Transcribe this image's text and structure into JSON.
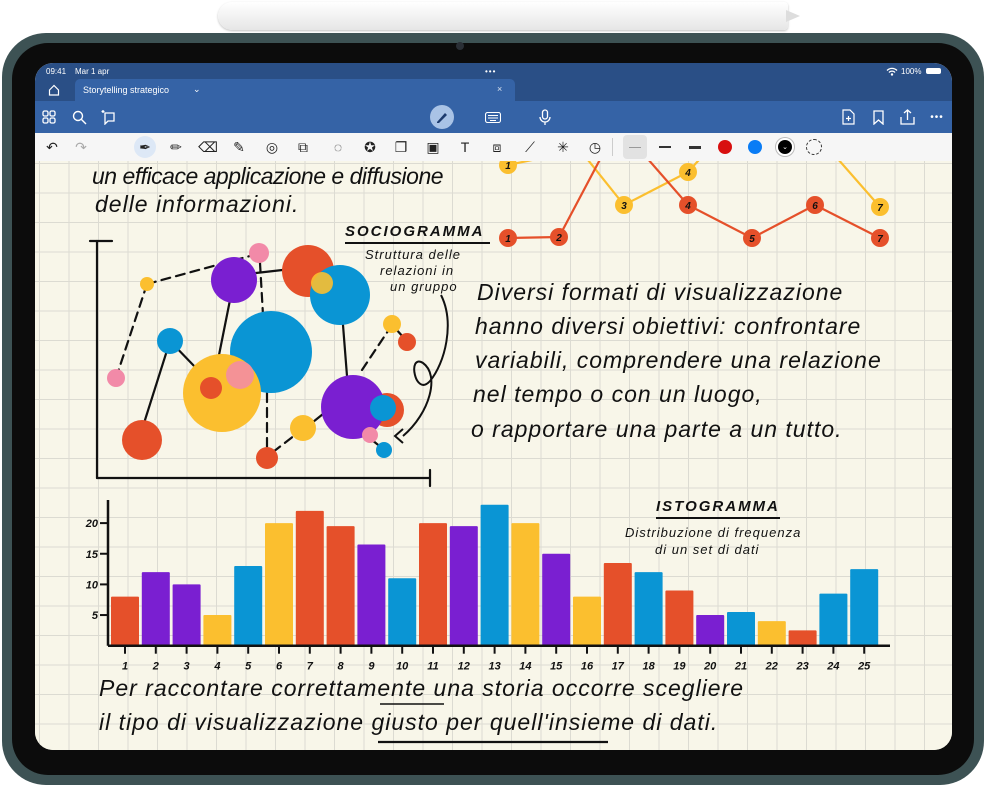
{
  "status_bar": {
    "time": "09:41",
    "date": "Mar 1 apr",
    "battery": "100%"
  },
  "tab": {
    "title": "Storytelling strategico",
    "close": "×"
  },
  "toolbar": {
    "left_icons": [
      "grid-icon",
      "search-icon",
      "ai-sparkle-icon"
    ],
    "center_icons": [
      "pen-mode-icon",
      "keyboard-icon",
      "microphone-icon"
    ],
    "right_icons": [
      "add-page-icon",
      "bookmark-icon",
      "share-icon",
      "more-icon"
    ]
  },
  "tools": {
    "items": [
      "undo-icon",
      "redo-icon",
      "pen-icon",
      "pencil-icon",
      "eraser-icon",
      "highlighter-icon",
      "shapes-icon",
      "elements-icon",
      "lasso-icon",
      "sticker-icon",
      "sticky-note-icon",
      "image-icon",
      "text-box-icon",
      "scan-icon",
      "ruler-icon",
      "laser-pointer-icon",
      "clock-icon"
    ],
    "stroke_widths": [
      "thin",
      "medium",
      "thick"
    ],
    "colors": [
      "#d80f0f",
      "#0a7cf5",
      "#000000"
    ],
    "selected_color": "#000000"
  },
  "notes": {
    "intro_line1": "un efficace applicazione e diffusione",
    "intro_line2": "delle informazioni.",
    "paragraph": [
      "Diversi formati di visualizzazione",
      "hanno diversi obiettivi: confrontare",
      "variabili, comprendere una relazione",
      "nel tempo o con un luogo,",
      "o rapportare una parte a un tutto."
    ],
    "conclusion_line1": "Per raccontare correttamente una storia occorre scegliere",
    "conclusion_line2": "il tipo di visualizzazione giusto per quell'insieme di dati."
  },
  "sociogram": {
    "title": "SOCIOGRAMMA",
    "caption": [
      "Struttura delle",
      "relazioni in",
      "un gruppo"
    ]
  },
  "colors": {
    "orange": "#e5502a",
    "purple": "#7a1fd1",
    "yellow": "#fbbf2f",
    "blue": "#0a95d4",
    "pink": "#f28aa8"
  },
  "chart_data": [
    {
      "type": "bar",
      "title": "ISTOGRAMMA",
      "subtitle": "Distribuzione di frequenza di un set di dati",
      "subtitle_lines": [
        "Distribuzione di frequenza",
        "di un set di dati"
      ],
      "categories": [
        "1",
        "2",
        "3",
        "4",
        "5",
        "6",
        "7",
        "8",
        "9",
        "10",
        "11",
        "12",
        "13",
        "14",
        "15",
        "16",
        "17",
        "18",
        "19",
        "20",
        "21",
        "22",
        "23",
        "24",
        "25"
      ],
      "values": [
        8,
        12,
        10,
        5,
        13,
        20,
        22,
        19.5,
        16.5,
        11,
        20,
        19.5,
        23,
        20,
        15,
        8,
        13.5,
        12,
        9,
        5,
        5.5,
        4,
        2.5,
        8.5,
        12.5
      ],
      "bar_colors": [
        "orange",
        "purple",
        "purple",
        "yellow",
        "blue",
        "yellow",
        "orange",
        "orange",
        "purple",
        "blue",
        "orange",
        "purple",
        "blue",
        "yellow",
        "purple",
        "yellow",
        "orange",
        "blue",
        "orange",
        "purple",
        "blue",
        "yellow",
        "orange",
        "blue",
        "blue"
      ],
      "yticks": [
        5,
        10,
        15,
        20
      ],
      "ylim": [
        0,
        24
      ],
      "grid": false
    },
    {
      "type": "line",
      "series": [
        {
          "color": "orange",
          "point_labels": [
            "1",
            "2",
            "4",
            "5",
            "6",
            "7"
          ]
        },
        {
          "color": "yellow",
          "point_labels": [
            "1",
            "3",
            "4",
            "7"
          ]
        }
      ]
    }
  ]
}
